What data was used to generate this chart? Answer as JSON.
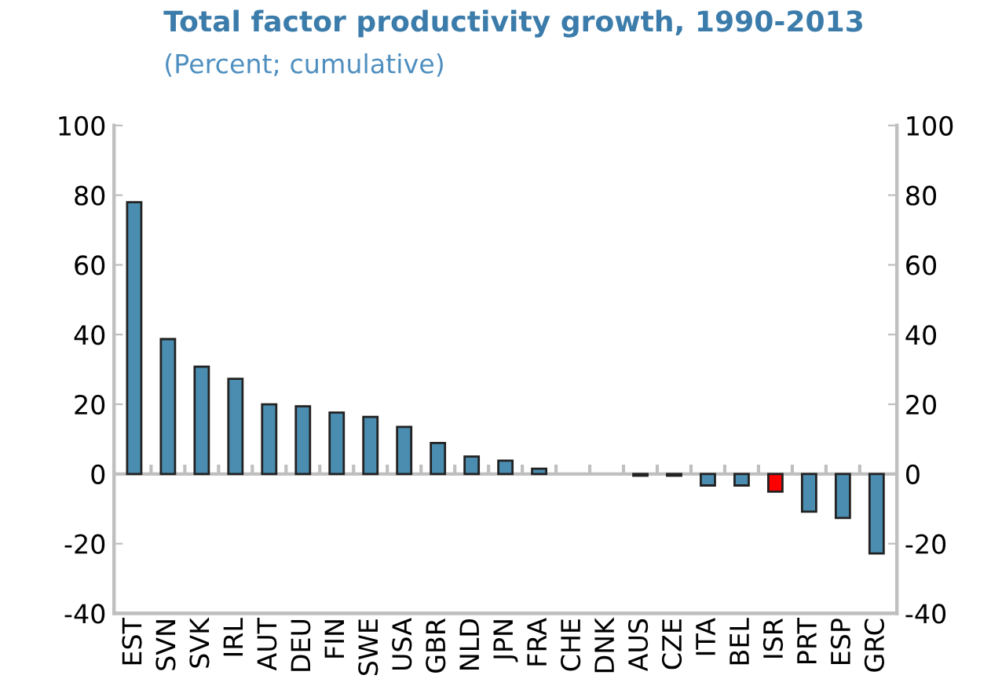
{
  "chart_data": {
    "type": "bar",
    "title": "Total factor productivity growth, 1990-2013",
    "subtitle": "(Percent; cumulative)",
    "categories": [
      "EST",
      "SVN",
      "SVK",
      "IRL",
      "AUT",
      "DEU",
      "FIN",
      "SWE",
      "USA",
      "GBR",
      "NLD",
      "JPN",
      "FRA",
      "CHE",
      "DNK",
      "AUS",
      "CZE",
      "ITA",
      "BEL",
      "ISR",
      "PRT",
      "ESP",
      "GRC"
    ],
    "values": [
      78,
      38.7,
      30.8,
      27.3,
      20,
      19.4,
      17.6,
      16.4,
      13.5,
      8.9,
      5,
      3.8,
      1.5,
      0,
      0,
      -0.5,
      -0.5,
      -3.3,
      -3.3,
      -5.1,
      -10.8,
      -12.6,
      -22.8
    ],
    "colors": [
      "#4a8db0",
      "#4a8db0",
      "#4a8db0",
      "#4a8db0",
      "#4a8db0",
      "#4a8db0",
      "#4a8db0",
      "#4a8db0",
      "#4a8db0",
      "#4a8db0",
      "#4a8db0",
      "#4a8db0",
      "#4a8db0",
      "#4a8db0",
      "#4a8db0",
      "#4a8db0",
      "#4a8db0",
      "#4a8db0",
      "#4a8db0",
      "#ff0000",
      "#4a8db0",
      "#4a8db0",
      "#4a8db0"
    ],
    "ylim": [
      -40,
      100
    ],
    "yticks": [
      -40,
      -20,
      0,
      20,
      40,
      60,
      80,
      100
    ],
    "y2lim": [
      -40,
      100
    ],
    "y2ticks": [
      -40,
      -20,
      0,
      20,
      40,
      60,
      80,
      100
    ],
    "ref_lines": [
      {
        "axis": "y",
        "value": 0,
        "color": "#bfbfbf"
      }
    ],
    "grid": false,
    "legend": false
  }
}
